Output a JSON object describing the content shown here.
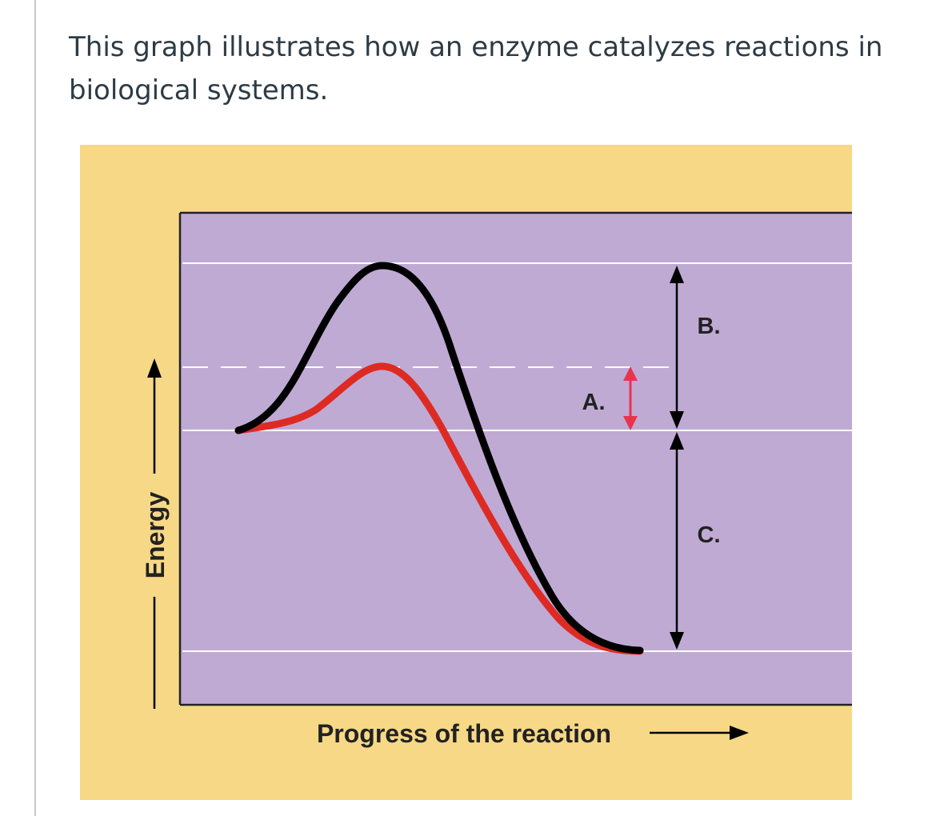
{
  "question": {
    "text": "This graph illustrates how an enzyme catalyzes reactions in biological systems."
  },
  "diagram": {
    "y_axis_label": "Energy",
    "x_axis_label": "Progress of the reaction",
    "label_a": "A.",
    "label_b": "B.",
    "label_c": "C.",
    "colors": {
      "background": "#f7d886",
      "plot_area": "#bfaad4",
      "uncatalyzed_curve": "#000000",
      "catalyzed_curve": "#dd2b24",
      "arrow_a": "#e8344e",
      "gridline": "#ffffff"
    }
  }
}
